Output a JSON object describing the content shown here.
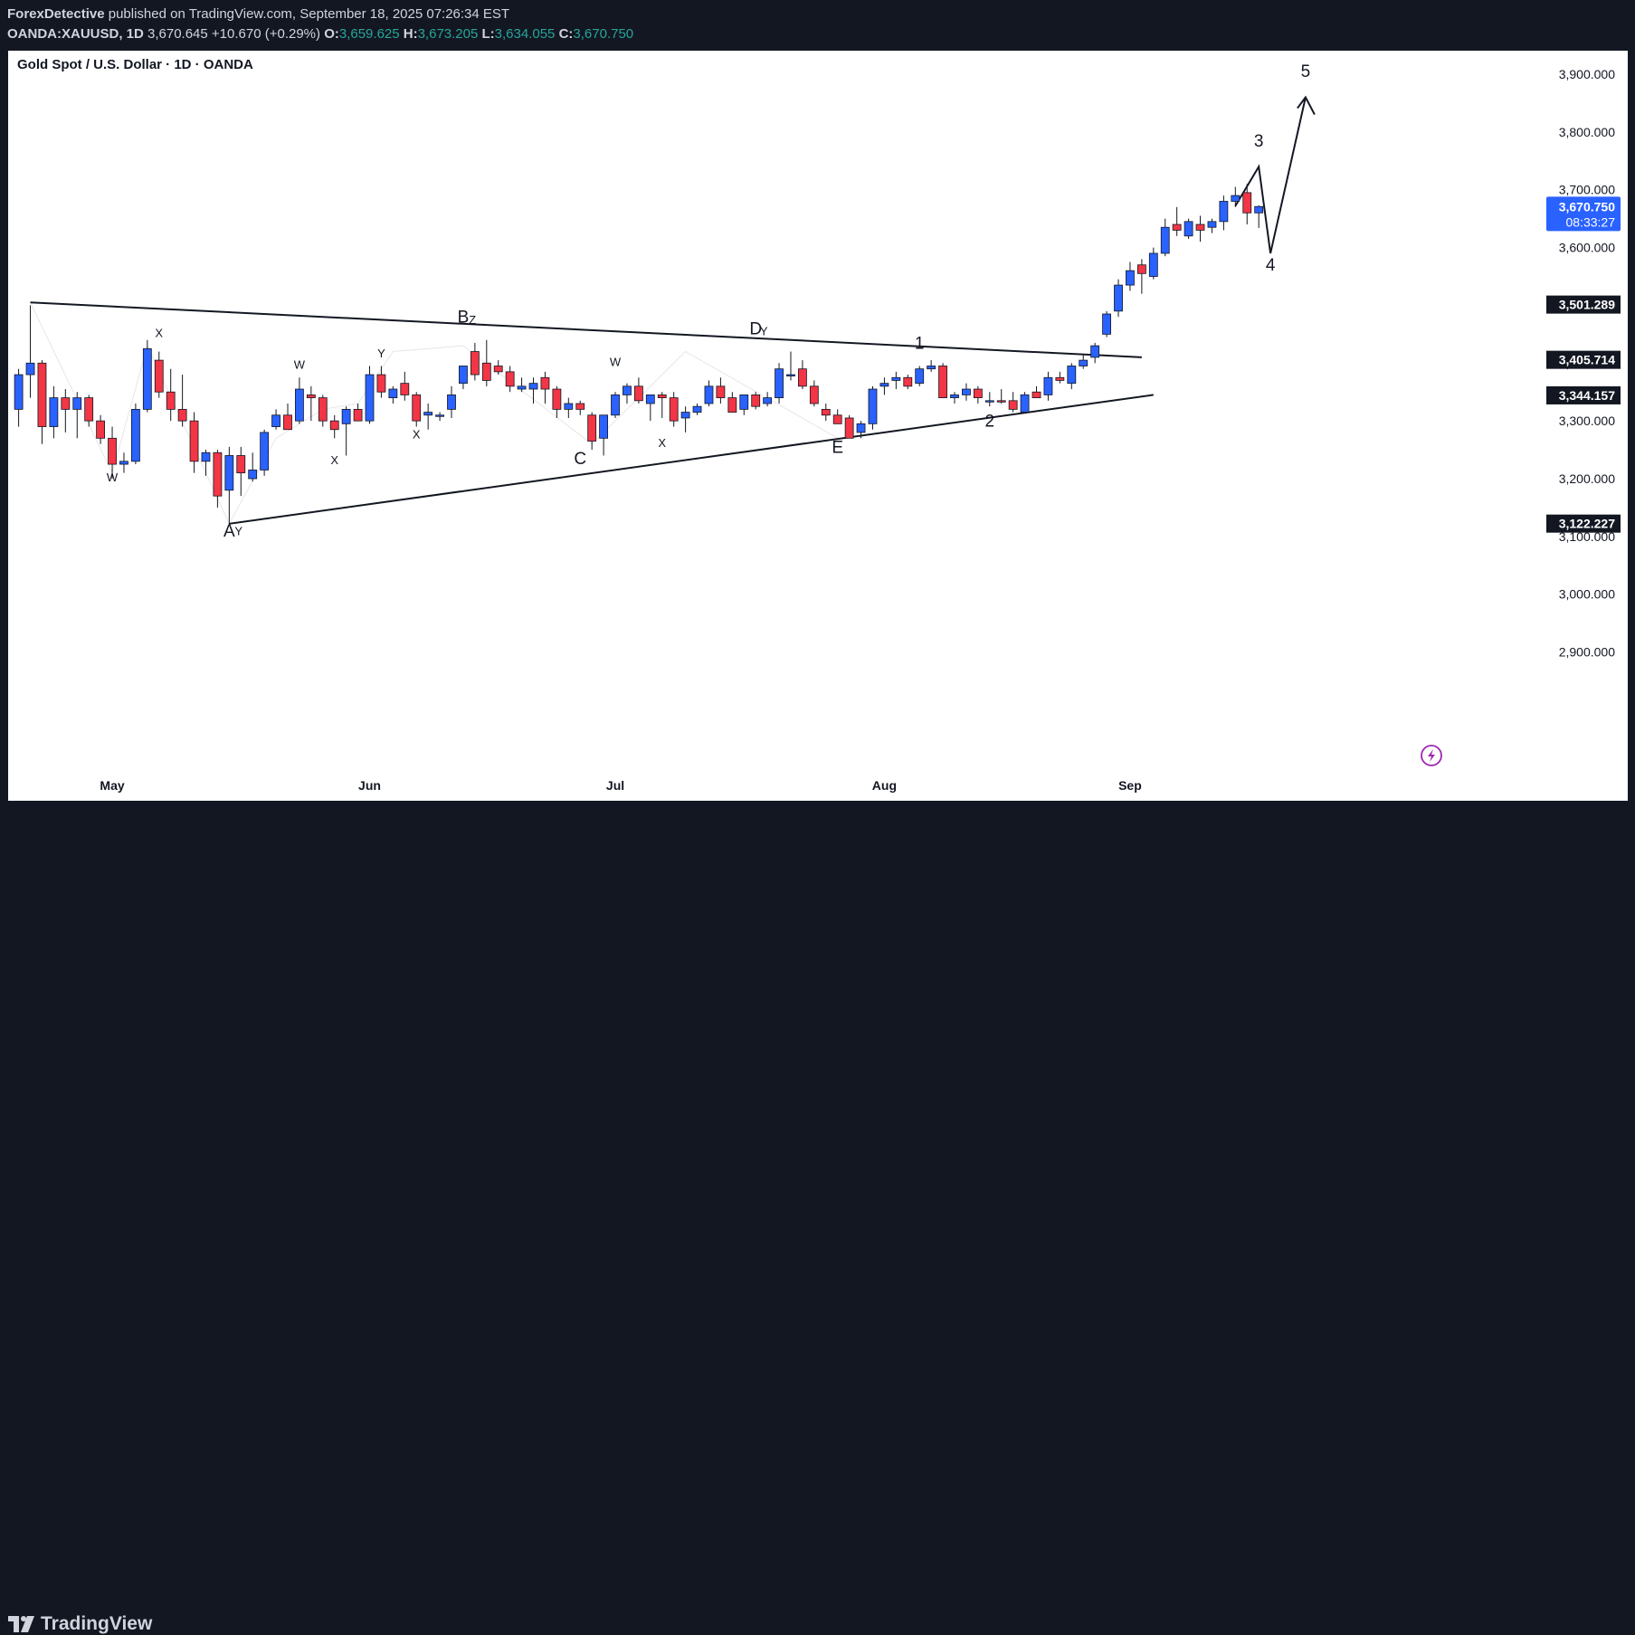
{
  "header": {
    "author": "ForexDetective",
    "published_text": "published on TradingView.com, September 18, 2025 07:26:34 EST",
    "symbol": "OANDA:XAUUSD, 1D",
    "last": "3,670.645",
    "change": "+10.670 (+0.29%)",
    "o_label": "O:",
    "o_value": "3,659.625",
    "h_label": "H:",
    "h_value": "3,673.205",
    "l_label": "L:",
    "l_value": "3,634.055",
    "c_label": "C:",
    "c_value": "3,670.750"
  },
  "chart_title": "Gold Spot / U.S. Dollar · 1D · OANDA",
  "price_badge": {
    "price": "3,670.750",
    "countdown": "08:33:27"
  },
  "level_labels": [
    "3,501.289",
    "3,405.714",
    "3,344.157",
    "3,122.227"
  ],
  "brand": "TradingView",
  "colors": {
    "up": "#2962ff",
    "down": "#f23645",
    "badge": "#2962ff",
    "level_bg": "#131722",
    "flash": "#9c27b0"
  },
  "chart_data": {
    "type": "candlestick",
    "title": "Gold Spot / U.S. Dollar · 1D · OANDA",
    "symbol": "XAUUSD",
    "ylim": [
      2850,
      3950
    ],
    "y_ticks": [
      2900,
      3000,
      3100,
      3200,
      3300,
      3400,
      3500,
      3600,
      3700,
      3800,
      3900
    ],
    "y_tick_labels": [
      "2,900.000",
      "3,000.000",
      "3,100.000",
      "3,200.000",
      "3,300.000",
      "3,400.000",
      "3,500.000",
      "3,600.000",
      "3,700.000",
      "3,800.000",
      "3,900.000"
    ],
    "x_ticks": [
      {
        "label": "May",
        "index": 8
      },
      {
        "label": "Jun",
        "index": 30
      },
      {
        "label": "Jul",
        "index": 51
      },
      {
        "label": "Aug",
        "index": 74
      },
      {
        "label": "Sep",
        "index": 95
      }
    ],
    "grid": false,
    "candles": [
      [
        3320,
        3390,
        3290,
        3380
      ],
      [
        3380,
        3500,
        3340,
        3400
      ],
      [
        3400,
        3405,
        3260,
        3290
      ],
      [
        3290,
        3360,
        3270,
        3340
      ],
      [
        3340,
        3355,
        3280,
        3320
      ],
      [
        3320,
        3350,
        3270,
        3340
      ],
      [
        3340,
        3345,
        3290,
        3300
      ],
      [
        3300,
        3310,
        3260,
        3270
      ],
      [
        3270,
        3290,
        3200,
        3225
      ],
      [
        3225,
        3245,
        3210,
        3230
      ],
      [
        3230,
        3330,
        3225,
        3320
      ],
      [
        3320,
        3440,
        3315,
        3425
      ],
      [
        3405,
        3420,
        3340,
        3350
      ],
      [
        3350,
        3390,
        3300,
        3320
      ],
      [
        3320,
        3380,
        3290,
        3300
      ],
      [
        3300,
        3315,
        3210,
        3230
      ],
      [
        3230,
        3250,
        3205,
        3245
      ],
      [
        3245,
        3250,
        3150,
        3170
      ],
      [
        3180,
        3255,
        3120,
        3240
      ],
      [
        3240,
        3255,
        3170,
        3210
      ],
      [
        3200,
        3245,
        3195,
        3215
      ],
      [
        3215,
        3285,
        3205,
        3280
      ],
      [
        3290,
        3320,
        3285,
        3310
      ],
      [
        3310,
        3330,
        3290,
        3285
      ],
      [
        3300,
        3375,
        3295,
        3355
      ],
      [
        3345,
        3360,
        3300,
        3340
      ],
      [
        3340,
        3345,
        3290,
        3300
      ],
      [
        3300,
        3310,
        3270,
        3285
      ],
      [
        3295,
        3325,
        3240,
        3320
      ],
      [
        3320,
        3330,
        3300,
        3300
      ],
      [
        3300,
        3395,
        3295,
        3380
      ],
      [
        3380,
        3395,
        3340,
        3350
      ],
      [
        3340,
        3360,
        3330,
        3355
      ],
      [
        3365,
        3385,
        3335,
        3345
      ],
      [
        3345,
        3350,
        3290,
        3300
      ],
      [
        3310,
        3330,
        3285,
        3315
      ],
      [
        3310,
        3315,
        3300,
        3310
      ],
      [
        3320,
        3360,
        3305,
        3345
      ],
      [
        3365,
        3395,
        3355,
        3395
      ],
      [
        3420,
        3435,
        3370,
        3380
      ],
      [
        3400,
        3440,
        3360,
        3370
      ],
      [
        3395,
        3405,
        3380,
        3385
      ],
      [
        3385,
        3395,
        3350,
        3360
      ],
      [
        3355,
        3375,
        3350,
        3360
      ],
      [
        3355,
        3375,
        3330,
        3365
      ],
      [
        3375,
        3385,
        3330,
        3355
      ],
      [
        3355,
        3360,
        3305,
        3320
      ],
      [
        3320,
        3340,
        3305,
        3330
      ],
      [
        3330,
        3335,
        3310,
        3320
      ],
      [
        3310,
        3315,
        3250,
        3265
      ],
      [
        3270,
        3310,
        3240,
        3310
      ],
      [
        3310,
        3350,
        3305,
        3345
      ],
      [
        3345,
        3365,
        3330,
        3360
      ],
      [
        3360,
        3375,
        3330,
        3335
      ],
      [
        3330,
        3345,
        3300,
        3345
      ],
      [
        3345,
        3350,
        3305,
        3340
      ],
      [
        3340,
        3350,
        3290,
        3300
      ],
      [
        3305,
        3325,
        3280,
        3315
      ],
      [
        3315,
        3330,
        3310,
        3325
      ],
      [
        3330,
        3370,
        3325,
        3360
      ],
      [
        3360,
        3375,
        3330,
        3340
      ],
      [
        3340,
        3350,
        3320,
        3315
      ],
      [
        3320,
        3345,
        3310,
        3345
      ],
      [
        3345,
        3350,
        3320,
        3325
      ],
      [
        3330,
        3350,
        3325,
        3340
      ],
      [
        3340,
        3400,
        3330,
        3390
      ],
      [
        3380,
        3420,
        3370,
        3380
      ],
      [
        3390,
        3405,
        3355,
        3360
      ],
      [
        3360,
        3370,
        3325,
        3330
      ],
      [
        3320,
        3330,
        3300,
        3310
      ],
      [
        3310,
        3320,
        3295,
        3295
      ],
      [
        3305,
        3310,
        3270,
        3270
      ],
      [
        3280,
        3300,
        3270,
        3295
      ],
      [
        3295,
        3360,
        3285,
        3355
      ],
      [
        3360,
        3375,
        3345,
        3365
      ],
      [
        3370,
        3385,
        3355,
        3375
      ],
      [
        3375,
        3380,
        3355,
        3360
      ],
      [
        3365,
        3395,
        3360,
        3390
      ],
      [
        3390,
        3405,
        3385,
        3395
      ],
      [
        3395,
        3400,
        3340,
        3340
      ],
      [
        3340,
        3350,
        3330,
        3345
      ],
      [
        3345,
        3365,
        3335,
        3355
      ],
      [
        3355,
        3360,
        3330,
        3340
      ],
      [
        3335,
        3350,
        3325,
        3335
      ],
      [
        3335,
        3355,
        3330,
        3333
      ],
      [
        3335,
        3350,
        3315,
        3320
      ],
      [
        3315,
        3350,
        3315,
        3345
      ],
      [
        3350,
        3360,
        3340,
        3340
      ],
      [
        3345,
        3385,
        3335,
        3375
      ],
      [
        3375,
        3385,
        3365,
        3370
      ],
      [
        3365,
        3400,
        3355,
        3395
      ],
      [
        3395,
        3415,
        3390,
        3405
      ],
      [
        3410,
        3435,
        3400,
        3430
      ],
      [
        3450,
        3490,
        3445,
        3485
      ],
      [
        3490,
        3545,
        3480,
        3535
      ],
      [
        3535,
        3575,
        3525,
        3560
      ],
      [
        3570,
        3580,
        3520,
        3555
      ],
      [
        3550,
        3600,
        3545,
        3590
      ],
      [
        3590,
        3650,
        3585,
        3635
      ],
      [
        3640,
        3670,
        3620,
        3630
      ],
      [
        3620,
        3650,
        3615,
        3645
      ],
      [
        3640,
        3655,
        3610,
        3630
      ],
      [
        3635,
        3650,
        3625,
        3645
      ],
      [
        3645,
        3690,
        3630,
        3680
      ],
      [
        3680,
        3705,
        3670,
        3690
      ],
      [
        3695,
        3710,
        3640,
        3660
      ],
      [
        3660,
        3673,
        3634,
        3671
      ]
    ],
    "drawings": {
      "trendlines": [
        {
          "from": [
            1,
            3505
          ],
          "to": [
            96,
            3410
          ]
        },
        {
          "from": [
            18,
            3122
          ],
          "to": [
            97,
            3345
          ]
        }
      ],
      "projection": [
        [
          104,
          3672
        ],
        [
          106,
          3740
        ],
        [
          107,
          3590
        ],
        [
          110,
          3860
        ]
      ],
      "zigzag": [
        [
          1,
          3505
        ],
        [
          8,
          3210
        ],
        [
          11,
          3430
        ],
        [
          18,
          3122
        ],
        [
          22,
          3270
        ],
        [
          26,
          3320
        ],
        [
          29,
          3330
        ],
        [
          32,
          3420
        ],
        [
          38,
          3430
        ],
        [
          49,
          3260
        ],
        [
          57,
          3420
        ],
        [
          70,
          3270
        ]
      ]
    },
    "wave_labels": [
      {
        "text": "W",
        "idx": 8,
        "price": 3195,
        "size": "small"
      },
      {
        "text": "X",
        "idx": 12,
        "price": 3445,
        "size": "small"
      },
      {
        "text": "W",
        "idx": 24,
        "price": 3390,
        "size": "small"
      },
      {
        "text": "X",
        "idx": 27,
        "price": 3225,
        "size": "small"
      },
      {
        "text": "Y",
        "idx": 31,
        "price": 3410,
        "size": "small"
      },
      {
        "text": "X",
        "idx": 34,
        "price": 3270,
        "size": "small"
      },
      {
        "text": "B",
        "idx": 38,
        "price": 3470,
        "size": "large"
      },
      {
        "text": "Z",
        "idx": 38.8,
        "price": 3468,
        "size": "small"
      },
      {
        "text": "W",
        "idx": 51,
        "price": 3395,
        "size": "small"
      },
      {
        "text": "C",
        "idx": 48,
        "price": 3225,
        "size": "large"
      },
      {
        "text": "X",
        "idx": 55,
        "price": 3255,
        "size": "small"
      },
      {
        "text": "D",
        "idx": 63,
        "price": 3450,
        "size": "large"
      },
      {
        "text": "Y",
        "idx": 63.7,
        "price": 3448,
        "size": "small"
      },
      {
        "text": "E",
        "idx": 70,
        "price": 3245,
        "size": "large"
      },
      {
        "text": "1",
        "idx": 77,
        "price": 3425,
        "size": "large"
      },
      {
        "text": "2",
        "idx": 83,
        "price": 3290,
        "size": "large"
      },
      {
        "text": "A",
        "idx": 18,
        "price": 3100,
        "size": "large"
      },
      {
        "text": "Y",
        "idx": 18.8,
        "price": 3102,
        "size": "small"
      },
      {
        "text": "3",
        "idx": 106,
        "price": 3775,
        "size": "large"
      },
      {
        "text": "4",
        "idx": 107,
        "price": 3560,
        "size": "large"
      },
      {
        "text": "5",
        "idx": 110,
        "price": 3895,
        "size": "large"
      }
    ]
  }
}
